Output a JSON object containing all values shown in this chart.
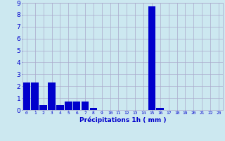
{
  "values": [
    2.3,
    2.3,
    0.4,
    2.3,
    0.4,
    0.7,
    0.7,
    0.7,
    0.2,
    0.0,
    0.0,
    0.0,
    0.0,
    0.0,
    0.0,
    8.7,
    0.2,
    0.0,
    0.0,
    0.0,
    0.0,
    0.0,
    0.0,
    0.0
  ],
  "categories": [
    "0",
    "1",
    "2",
    "3",
    "4",
    "5",
    "6",
    "7",
    "8",
    "9",
    "10",
    "11",
    "12",
    "13",
    "14",
    "15",
    "16",
    "17",
    "18",
    "19",
    "20",
    "21",
    "22",
    "23"
  ],
  "bar_color": "#0000cc",
  "background_color": "#cce8f0",
  "grid_color": "#aaaacc",
  "xlabel": "Précipitations 1h ( mm )",
  "xlabel_color": "#0000cc",
  "tick_color": "#0000cc",
  "ylim": [
    0,
    9
  ],
  "yticks": [
    0,
    1,
    2,
    3,
    4,
    5,
    6,
    7,
    8,
    9
  ]
}
